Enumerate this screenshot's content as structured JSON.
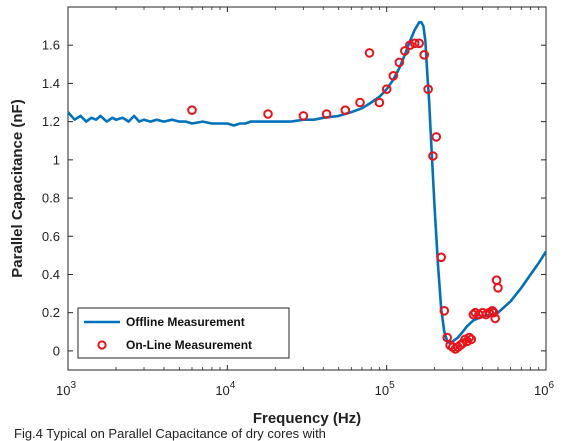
{
  "caption": "Fig.4 Typical on Parallel Capacitance of dry cores with",
  "chart_data": {
    "type": "line",
    "xlabel": "Frequency (Hz)",
    "ylabel": "Parallel Capacitance (nF)",
    "xscale": "log",
    "xlim": [
      1000,
      1000000
    ],
    "ylim": [
      -0.1,
      1.8
    ],
    "xticks": [
      1000,
      10000,
      100000,
      1000000
    ],
    "xtick_labels": [
      {
        "base": "10",
        "exp": "3"
      },
      {
        "base": "10",
        "exp": "4"
      },
      {
        "base": "10",
        "exp": "5"
      },
      {
        "base": "10",
        "exp": "6"
      }
    ],
    "yticks": [
      0,
      0.2,
      0.4,
      0.6,
      0.8,
      1,
      1.2,
      1.4,
      1.6
    ],
    "ytick_labels": [
      "0",
      "0.2",
      "0.4",
      "0.6",
      "0.8",
      "1",
      "1.2",
      "1.4",
      "1.6"
    ],
    "grid": false,
    "legend": "bottom-left",
    "series": [
      {
        "name": "Offline Measurement",
        "style": "line",
        "color": "#0072BD",
        "x": [
          1000,
          1100,
          1200,
          1300,
          1400,
          1500,
          1600,
          1750,
          1900,
          2000,
          2200,
          2400,
          2600,
          2800,
          3000,
          3300,
          3600,
          4000,
          4500,
          5000,
          5500,
          6000,
          7000,
          8000,
          9000,
          10000,
          11000,
          12000,
          13000,
          14000,
          16000,
          18000,
          20000,
          25000,
          30000,
          35000,
          40000,
          50000,
          60000,
          70000,
          80000,
          90000,
          100000,
          110000,
          120000,
          130000,
          140000,
          150000,
          160000,
          165000,
          170000,
          175000,
          180000,
          185000,
          190000,
          200000,
          210000,
          220000,
          230000,
          240000,
          250000,
          260000,
          270000,
          280000,
          300000,
          320000,
          350000,
          400000,
          450000,
          500000,
          600000,
          700000,
          800000,
          900000,
          1000000
        ],
        "y": [
          1.25,
          1.21,
          1.23,
          1.2,
          1.22,
          1.21,
          1.23,
          1.2,
          1.22,
          1.21,
          1.22,
          1.2,
          1.23,
          1.2,
          1.21,
          1.2,
          1.21,
          1.2,
          1.21,
          1.2,
          1.2,
          1.19,
          1.2,
          1.19,
          1.19,
          1.19,
          1.18,
          1.19,
          1.19,
          1.2,
          1.2,
          1.2,
          1.2,
          1.2,
          1.21,
          1.21,
          1.22,
          1.23,
          1.25,
          1.27,
          1.3,
          1.33,
          1.37,
          1.42,
          1.48,
          1.55,
          1.62,
          1.68,
          1.72,
          1.72,
          1.7,
          1.62,
          1.45,
          1.3,
          1.1,
          0.75,
          0.45,
          0.22,
          0.1,
          0.05,
          0.04,
          0.05,
          0.06,
          0.07,
          0.1,
          0.13,
          0.16,
          0.18,
          0.19,
          0.2,
          0.26,
          0.33,
          0.4,
          0.46,
          0.52
        ]
      },
      {
        "name": "On-Line Measurement",
        "style": "marker",
        "color": "#E8141B",
        "x": [
          6000,
          18000,
          30000,
          42000,
          55000,
          68000,
          78000,
          90000,
          100000,
          110000,
          120000,
          130000,
          140000,
          150000,
          160000,
          172000,
          182000,
          195000,
          205000,
          220000,
          230000,
          240000,
          250000,
          260000,
          270000,
          280000,
          290000,
          300000,
          310000,
          320000,
          330000,
          340000,
          350000,
          360000,
          380000,
          400000,
          420000,
          440000,
          460000,
          470000,
          480000,
          490000,
          500000
        ],
        "y": [
          1.26,
          1.24,
          1.23,
          1.24,
          1.26,
          1.3,
          1.56,
          1.3,
          1.37,
          1.44,
          1.51,
          1.57,
          1.6,
          1.61,
          1.61,
          1.55,
          1.37,
          1.02,
          1.12,
          0.49,
          0.21,
          0.07,
          0.03,
          0.02,
          0.01,
          0.02,
          0.03,
          0.04,
          0.06,
          0.05,
          0.07,
          0.06,
          0.19,
          0.2,
          0.19,
          0.2,
          0.19,
          0.2,
          0.21,
          0.2,
          0.17,
          0.37,
          0.33
        ]
      }
    ]
  }
}
